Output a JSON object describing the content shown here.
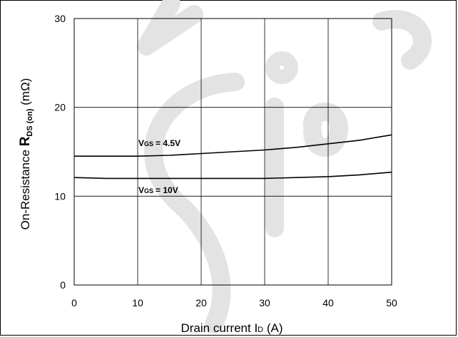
{
  "chart_data": {
    "type": "line",
    "xlabel": "Drain current I",
    "xlabel_sub": "D",
    "xlabel_unit": " (A)",
    "ylabel_prefix": "On-Resistance ",
    "ylabel_R": "R",
    "ylabel_sub": "DS (on)",
    "ylabel_unit": " (mΩ)",
    "xlim": [
      0,
      50
    ],
    "ylim": [
      0,
      30
    ],
    "x_ticks": [
      0,
      10,
      20,
      30,
      40,
      50
    ],
    "y_ticks": [
      0,
      10,
      20,
      30
    ],
    "grid": true,
    "series": [
      {
        "name": "VGS = 4.5V",
        "label_main": "V",
        "label_sub": "GS",
        "label_value": "= 4.5V",
        "color": "#000000",
        "x": [
          0,
          5,
          10,
          15,
          20,
          25,
          30,
          35,
          40,
          45,
          50
        ],
        "y": [
          14.5,
          14.5,
          14.5,
          14.6,
          14.8,
          15.0,
          15.2,
          15.5,
          15.9,
          16.3,
          16.9
        ]
      },
      {
        "name": "VGS = 10V",
        "label_main": "V",
        "label_sub": "GS",
        "label_value": "= 10V",
        "color": "#000000",
        "x": [
          0,
          5,
          10,
          15,
          20,
          25,
          30,
          35,
          40,
          45,
          50
        ],
        "y": [
          12.1,
          12.0,
          12.0,
          12.0,
          12.0,
          12.0,
          12.0,
          12.1,
          12.2,
          12.4,
          12.7
        ]
      }
    ]
  }
}
